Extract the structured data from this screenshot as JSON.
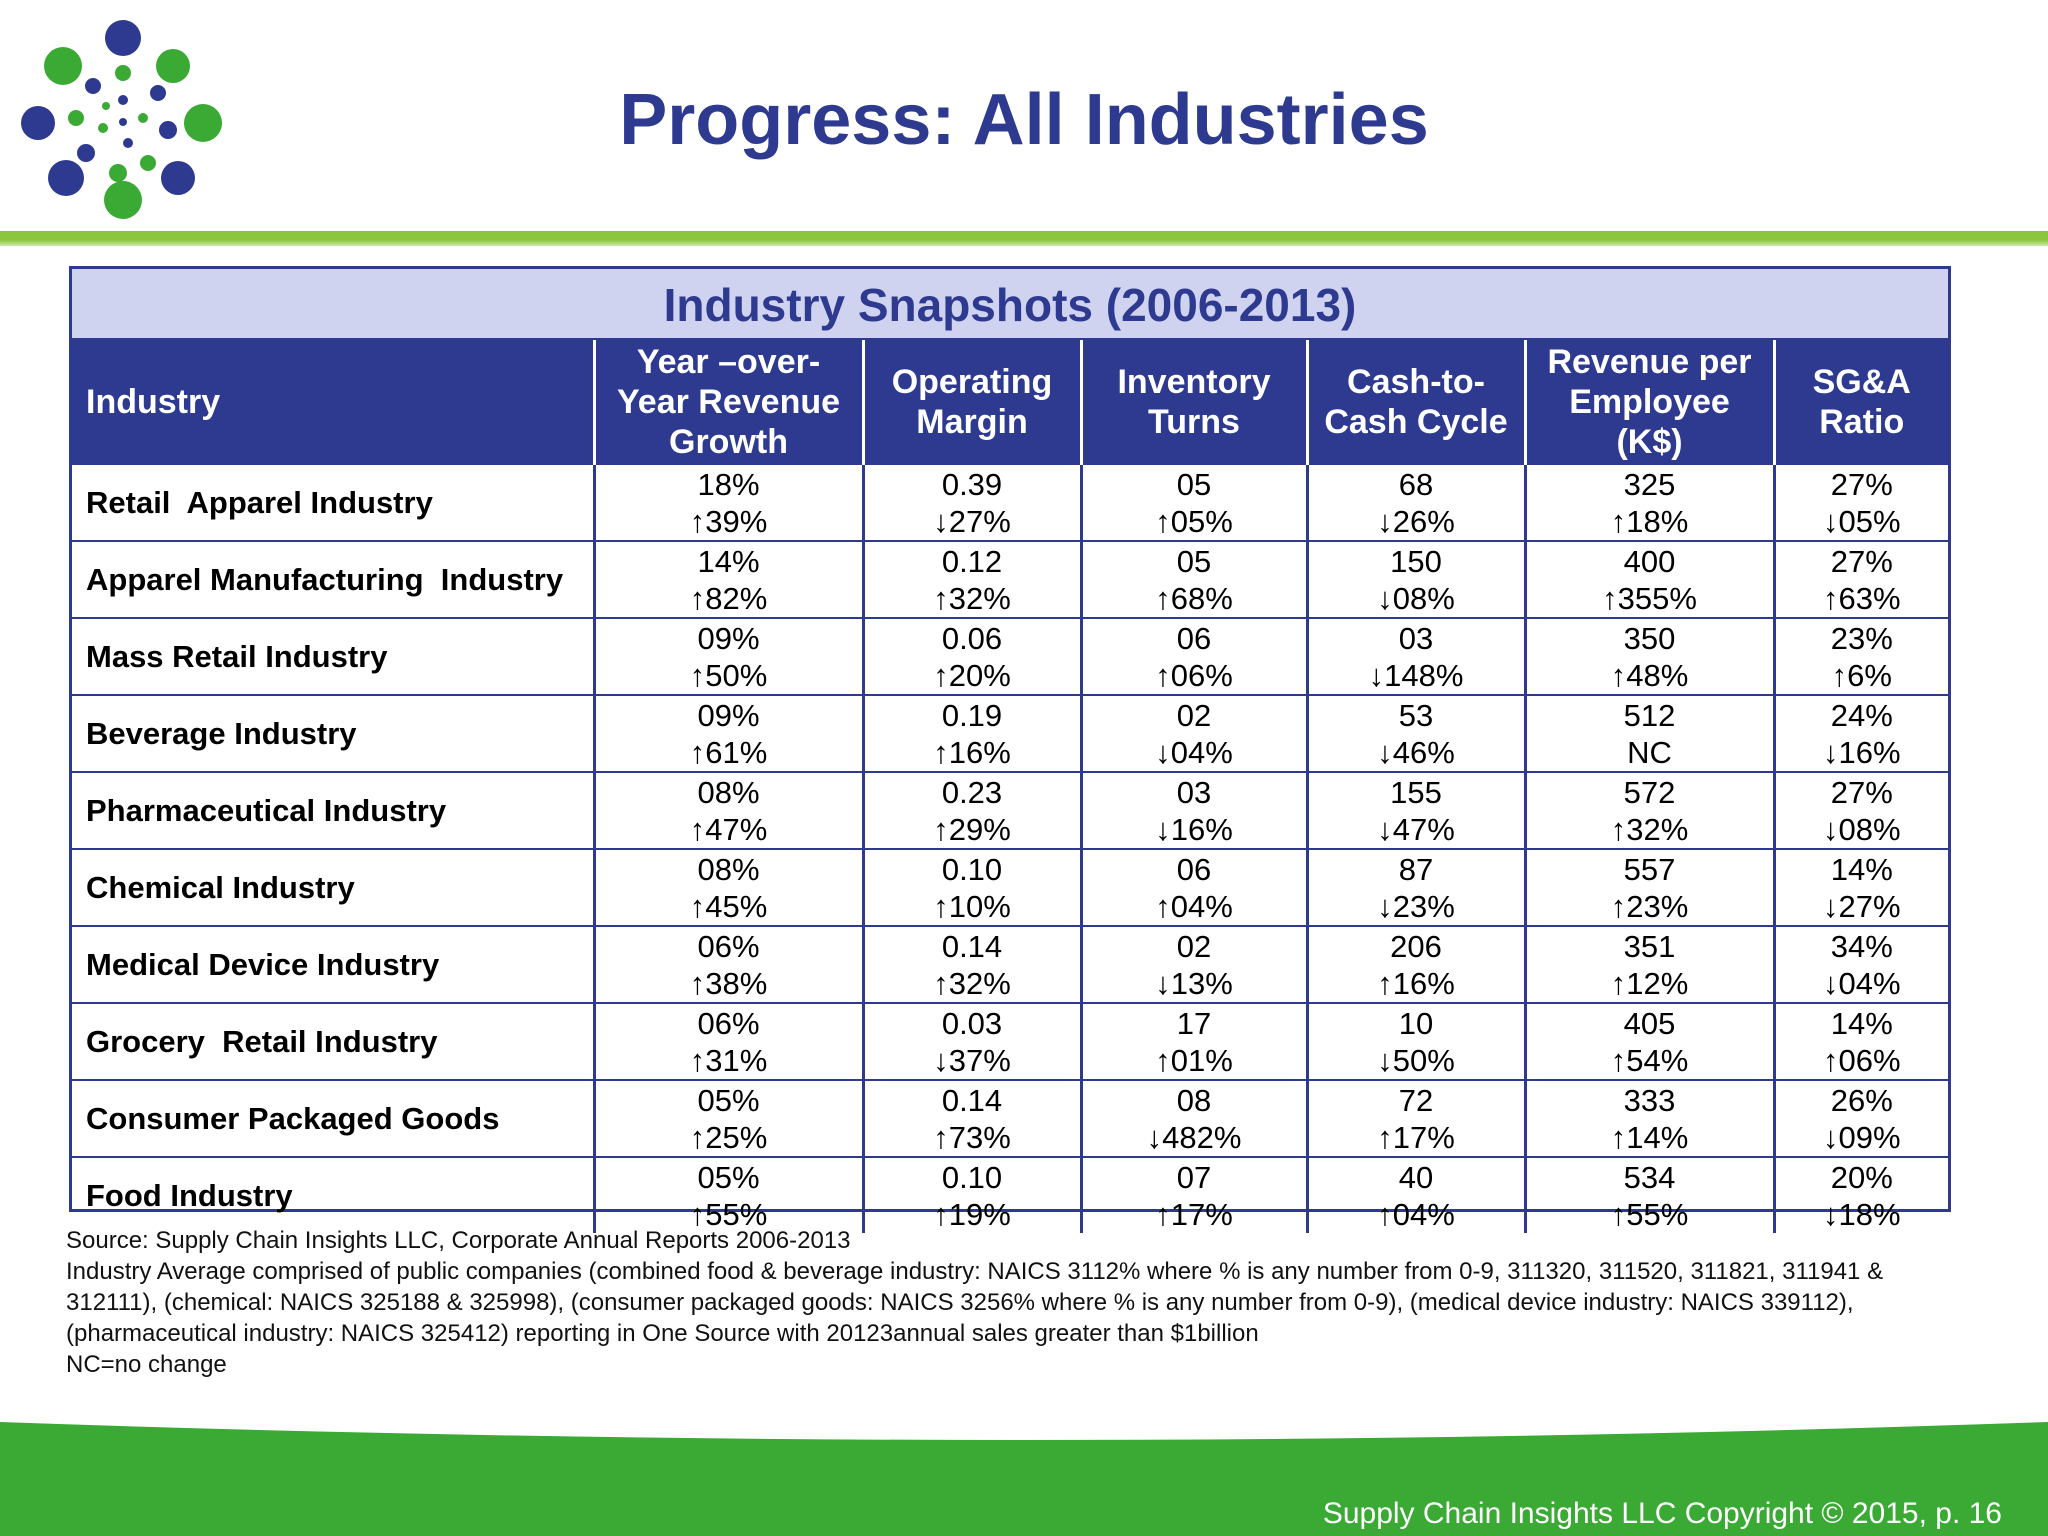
{
  "header": {
    "title": "Progress: All Industries",
    "logo_icon": "dots-burst-logo-icon"
  },
  "colors": {
    "title_blue": "#2e3a8f",
    "header_band": "#cfd3f0",
    "green_accent": "#8cc63f",
    "footer_green": "#3aaa35"
  },
  "table": {
    "title": "Industry Snapshots (2006-2013)",
    "columns": [
      "Industry",
      "Year –over-Year Revenue Growth",
      "Operating Margin",
      "Inventory Turns",
      "Cash-to-Cash Cycle",
      "Revenue per Employee (K$)",
      "SG&A Ratio"
    ],
    "rows": [
      {
        "industry": "Retail  Apparel Industry",
        "cells": [
          {
            "value": "18%",
            "dir": "up",
            "change": "39%"
          },
          {
            "value": "0.39",
            "dir": "down",
            "change": "27%"
          },
          {
            "value": "05",
            "dir": "up",
            "change": "05%"
          },
          {
            "value": "68",
            "dir": "down",
            "change": "26%"
          },
          {
            "value": "325",
            "dir": "up",
            "change": "18%"
          },
          {
            "value": "27%",
            "dir": "down",
            "change": "05%"
          }
        ]
      },
      {
        "industry": "Apparel Manufacturing  Industry",
        "cells": [
          {
            "value": "14%",
            "dir": "up",
            "change": "82%"
          },
          {
            "value": "0.12",
            "dir": "up",
            "change": "32%"
          },
          {
            "value": "05",
            "dir": "up",
            "change": "68%"
          },
          {
            "value": "150",
            "dir": "down",
            "change": "08%"
          },
          {
            "value": "400",
            "dir": "up",
            "change": "355%"
          },
          {
            "value": "27%",
            "dir": "up",
            "change": "63%"
          }
        ]
      },
      {
        "industry": "Mass Retail Industry",
        "cells": [
          {
            "value": "09%",
            "dir": "up",
            "change": "50%"
          },
          {
            "value": "0.06",
            "dir": "up",
            "change": "20%"
          },
          {
            "value": "06",
            "dir": "up",
            "change": "06%"
          },
          {
            "value": "03",
            "dir": "down",
            "change": "148%"
          },
          {
            "value": "350",
            "dir": "up",
            "change": "48%"
          },
          {
            "value": "23%",
            "dir": "up",
            "change": "6%"
          }
        ]
      },
      {
        "industry": "Beverage Industry",
        "cells": [
          {
            "value": "09%",
            "dir": "up",
            "change": "61%"
          },
          {
            "value": "0.19",
            "dir": "up",
            "change": "16%"
          },
          {
            "value": "02",
            "dir": "down",
            "change": "04%"
          },
          {
            "value": "53",
            "dir": "down",
            "change": "46%"
          },
          {
            "value": "512",
            "dir": "none",
            "change": "NC"
          },
          {
            "value": "24%",
            "dir": "down",
            "change": "16%"
          }
        ]
      },
      {
        "industry": "Pharmaceutical Industry",
        "cells": [
          {
            "value": "08%",
            "dir": "up",
            "change": "47%"
          },
          {
            "value": "0.23",
            "dir": "up",
            "change": "29%"
          },
          {
            "value": "03",
            "dir": "down",
            "change": "16%"
          },
          {
            "value": "155",
            "dir": "down",
            "change": "47%"
          },
          {
            "value": "572",
            "dir": "up",
            "change": "32%"
          },
          {
            "value": "27%",
            "dir": "down",
            "change": "08%"
          }
        ]
      },
      {
        "industry": "Chemical Industry",
        "cells": [
          {
            "value": "08%",
            "dir": "up",
            "change": "45%"
          },
          {
            "value": "0.10",
            "dir": "up",
            "change": "10%"
          },
          {
            "value": "06",
            "dir": "up",
            "change": "04%"
          },
          {
            "value": "87",
            "dir": "down",
            "change": "23%"
          },
          {
            "value": "557",
            "dir": "up",
            "change": "23%"
          },
          {
            "value": "14%",
            "dir": "down",
            "change": "27%"
          }
        ]
      },
      {
        "industry": "Medical Device Industry",
        "cells": [
          {
            "value": "06%",
            "dir": "up",
            "change": "38%"
          },
          {
            "value": "0.14",
            "dir": "up",
            "change": "32%"
          },
          {
            "value": "02",
            "dir": "down",
            "change": "13%"
          },
          {
            "value": "206",
            "dir": "up",
            "change": "16%"
          },
          {
            "value": "351",
            "dir": "up",
            "change": "12%"
          },
          {
            "value": "34%",
            "dir": "down",
            "change": "04%"
          }
        ]
      },
      {
        "industry": "Grocery  Retail Industry",
        "cells": [
          {
            "value": "06%",
            "dir": "up",
            "change": "31%"
          },
          {
            "value": "0.03",
            "dir": "down",
            "change": "37%"
          },
          {
            "value": "17",
            "dir": "up",
            "change": "01%"
          },
          {
            "value": "10",
            "dir": "down",
            "change": "50%"
          },
          {
            "value": "405",
            "dir": "up",
            "change": "54%"
          },
          {
            "value": "14%",
            "dir": "up",
            "change": "06%"
          }
        ]
      },
      {
        "industry": "Consumer Packaged Goods",
        "cells": [
          {
            "value": "05%",
            "dir": "up",
            "change": "25%"
          },
          {
            "value": "0.14",
            "dir": "up",
            "change": "73%"
          },
          {
            "value": "08",
            "dir": "down",
            "change": "482%"
          },
          {
            "value": "72",
            "dir": "up",
            "change": "17%"
          },
          {
            "value": "333",
            "dir": "up",
            "change": "14%"
          },
          {
            "value": "26%",
            "dir": "down",
            "change": "09%"
          }
        ]
      },
      {
        "industry": "Food Industry",
        "cells": [
          {
            "value": "05%",
            "dir": "up",
            "change": "55%"
          },
          {
            "value": "0.10",
            "dir": "up",
            "change": "19%"
          },
          {
            "value": "07",
            "dir": "up",
            "change": "17%"
          },
          {
            "value": "40",
            "dir": "up",
            "change": "04%"
          },
          {
            "value": "534",
            "dir": "up",
            "change": "55%"
          },
          {
            "value": "20%",
            "dir": "down",
            "change": "18%"
          }
        ]
      }
    ]
  },
  "notes": {
    "source": "Source: Supply Chain Insights LLC, Corporate Annual Reports 2006-2013",
    "definition": "Industry Average comprised of public companies (combined food & beverage industry: NAICS 3112% where % is any number from 0-9, 311320, 311520, 311821, 311941 & 312111), (chemical: NAICS 325188 & 325998), (consumer packaged goods: NAICS 3256% where % is any number from 0-9), (medical device industry: NAICS 339112), (pharmaceutical industry: NAICS 325412) reporting in One Source with 20123annual sales greater than $1billion",
    "legend": "NC=no change"
  },
  "footer": {
    "copyright": "Supply Chain Insights LLC Copyright © 2015, p. 16"
  }
}
